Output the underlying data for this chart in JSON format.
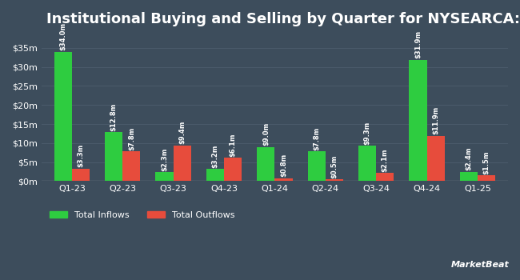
{
  "title": "Institutional Buying and Selling by Quarter for NYSEARCA:CRBN",
  "quarters": [
    "Q1-23",
    "Q2-23",
    "Q3-23",
    "Q4-23",
    "Q1-24",
    "Q2-24",
    "Q3-24",
    "Q4-24",
    "Q1-25"
  ],
  "inflows": [
    34.0,
    12.8,
    2.3,
    3.2,
    9.0,
    7.8,
    9.3,
    31.9,
    2.4
  ],
  "outflows": [
    3.3,
    7.8,
    9.4,
    6.1,
    0.8,
    0.5,
    2.1,
    11.9,
    1.5
  ],
  "inflow_labels": [
    "$34.0m",
    "$12.8m",
    "$2.3m",
    "$3.2m",
    "$9.0m",
    "$7.8m",
    "$9.3m",
    "$31.9m",
    "$2.4m"
  ],
  "outflow_labels": [
    "$3.3m",
    "$7.8m",
    "$9.4m",
    "$6.1m",
    "$0.8m",
    "$0.5m",
    "$2.1m",
    "$11.9m",
    "$1.5m"
  ],
  "inflow_color": "#2ecc40",
  "outflow_color": "#e74c3c",
  "background_color": "#3d4d5c",
  "plot_bg_color": "#3d4d5c",
  "text_color": "#ffffff",
  "grid_color": "#4a5a6a",
  "ylabel_ticks": [
    "$0m",
    "$5m",
    "$10m",
    "$15m",
    "$20m",
    "$25m",
    "$30m",
    "$35m"
  ],
  "ytick_vals": [
    0,
    5,
    10,
    15,
    20,
    25,
    30,
    35
  ],
  "ylim": [
    0,
    38
  ],
  "legend_inflow": "Total Inflows",
  "legend_outflow": "Total Outflows",
  "bar_width": 0.35,
  "title_fontsize": 13,
  "label_fontsize": 6,
  "tick_fontsize": 8,
  "legend_fontsize": 8
}
